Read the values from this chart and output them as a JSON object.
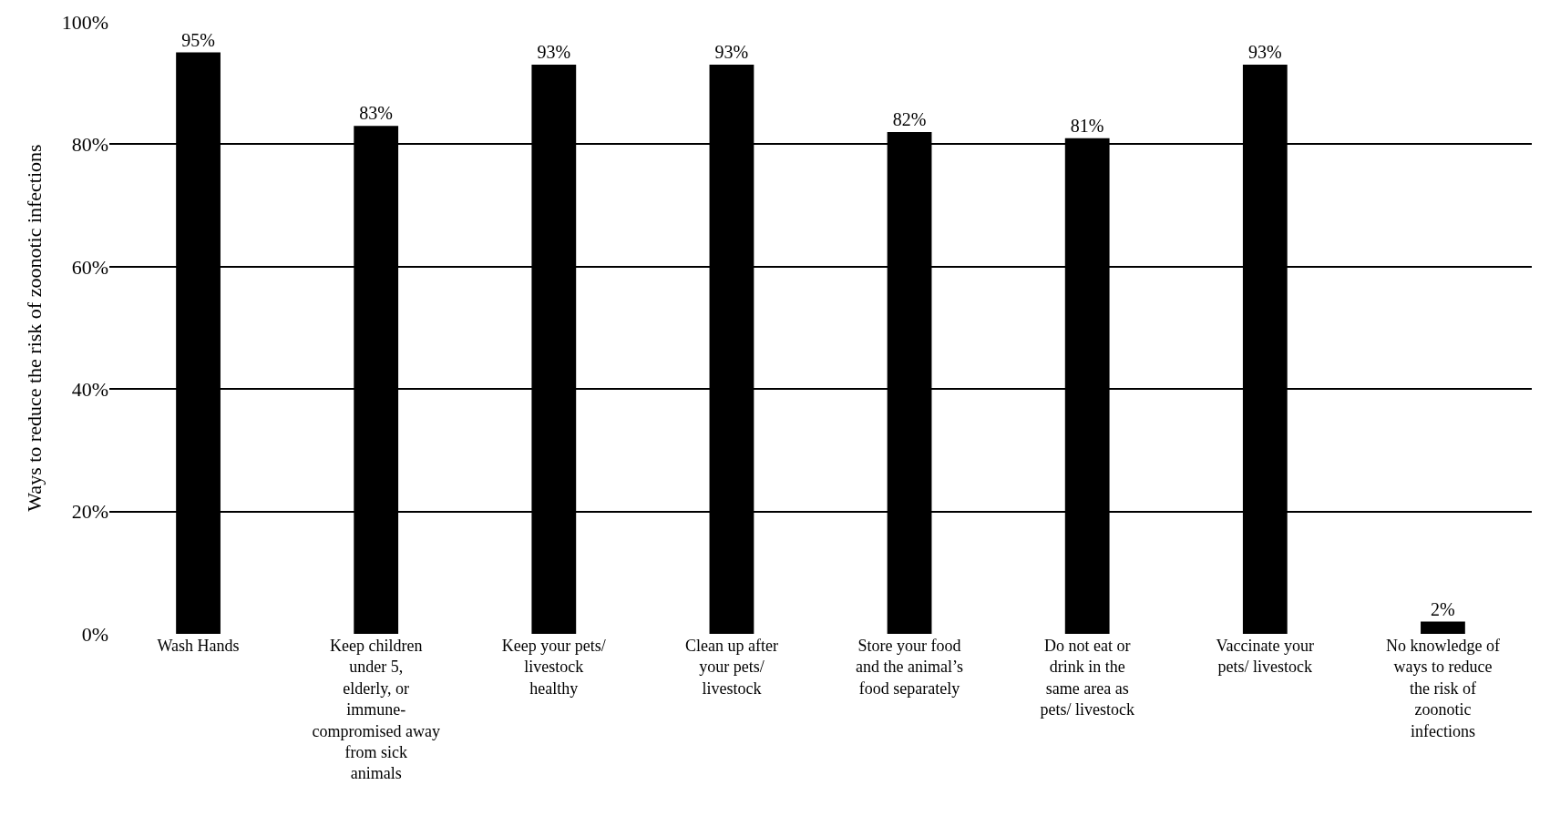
{
  "chart_data": {
    "type": "bar",
    "ylabel": "Ways to reduce the risk of zoonotic infections",
    "categories": [
      "Wash Hands",
      "Keep children under 5, elderly, or immune-compromised away from sick animals",
      "Keep your pets/ livestock healthy",
      "Clean up after your pets/ livestock",
      "Store your food and the animal’s food separately",
      "Do not eat or drink in the same area as pets/ livestock",
      "Vaccinate your pets/ livestock",
      "No knowledge of ways to reduce the risk of zoonotic infections"
    ],
    "values": [
      95,
      83,
      93,
      93,
      82,
      81,
      93,
      2
    ],
    "value_labels": [
      "95%",
      "83%",
      "93%",
      "93%",
      "82%",
      "81%",
      "93%",
      "2%"
    ],
    "color": "#000000",
    "ylim": [
      0,
      100
    ],
    "yticks": [
      {
        "value": 0,
        "label": "0%"
      },
      {
        "value": 20,
        "label": "20%"
      },
      {
        "value": 40,
        "label": "40%"
      },
      {
        "value": 60,
        "label": "60%"
      },
      {
        "value": 80,
        "label": "80%"
      },
      {
        "value": 100,
        "label": "100%"
      }
    ],
    "grid": "y",
    "legend": false
  }
}
